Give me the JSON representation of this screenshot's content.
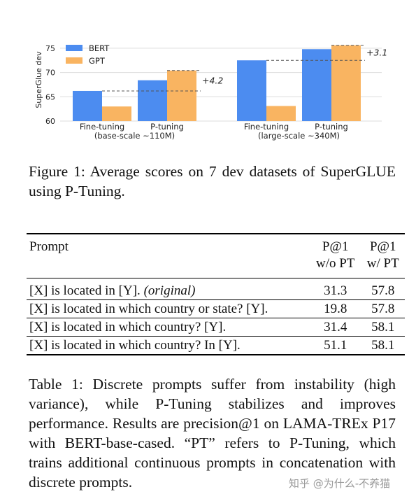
{
  "chart_data": {
    "type": "bar",
    "ylabel": "SuperGlue dev",
    "ylim": [
      60,
      77
    ],
    "yticks": [
      60,
      65,
      70,
      75
    ],
    "grid": true,
    "legend_position": "top-left",
    "groups": [
      {
        "label": "(base-scale ~110M)",
        "categories": [
          "Fine-tuning",
          "P-tuning"
        ]
      },
      {
        "label": "(large-scale ~340M)",
        "categories": [
          "Fine-tuning",
          "P-tuning"
        ]
      }
    ],
    "series": [
      {
        "name": "BERT",
        "color": "#4c8cf0",
        "values": [
          66.2,
          68.4,
          72.5,
          74.8
        ]
      },
      {
        "name": "GPT",
        "color": "#f9b461",
        "values": [
          63.0,
          70.4,
          63.1,
          75.6
        ]
      }
    ],
    "annotations": [
      {
        "text": "+4.2",
        "group": 0,
        "from_value": 66.2,
        "to_value": 70.4
      },
      {
        "text": "+3.1",
        "group": 1,
        "from_value": 72.5,
        "to_value": 75.6
      }
    ]
  },
  "figure_caption": {
    "label": "Figure 1:",
    "text": "Average scores on 7 dev datasets of SuperGLUE using P-Tuning."
  },
  "table": {
    "headers": {
      "prompt": "Prompt",
      "col1_line1": "P@1",
      "col1_line2": "w/o PT",
      "col2_line1": "P@1",
      "col2_line2": "w/ PT"
    },
    "rows": [
      {
        "prompt": "[X] is located in [Y].",
        "note": "(original)",
        "wo_pt": "31.3",
        "w_pt": "57.8"
      },
      {
        "prompt": "[X] is located in which country or state? [Y].",
        "note": "",
        "wo_pt": "19.8",
        "w_pt": "57.8"
      },
      {
        "prompt": "[X] is located in which country? [Y].",
        "note": "",
        "wo_pt": "31.4",
        "w_pt": "58.1"
      },
      {
        "prompt": "[X] is located in which country? In [Y].",
        "note": "",
        "wo_pt": "51.1",
        "w_pt": "58.1"
      }
    ]
  },
  "table_caption": {
    "label": "Table 1:",
    "text": "Discrete prompts suffer from instability (high variance), while P-Tuning stabilizes and improves performance. Results are precision@1 on LAMA-TREx P17 with BERT-base-cased. “PT” refers to P-Tuning, which trains additional continuous prompts in concatenation with discrete prompts."
  },
  "watermark": "知乎 @为什么-不养猫"
}
